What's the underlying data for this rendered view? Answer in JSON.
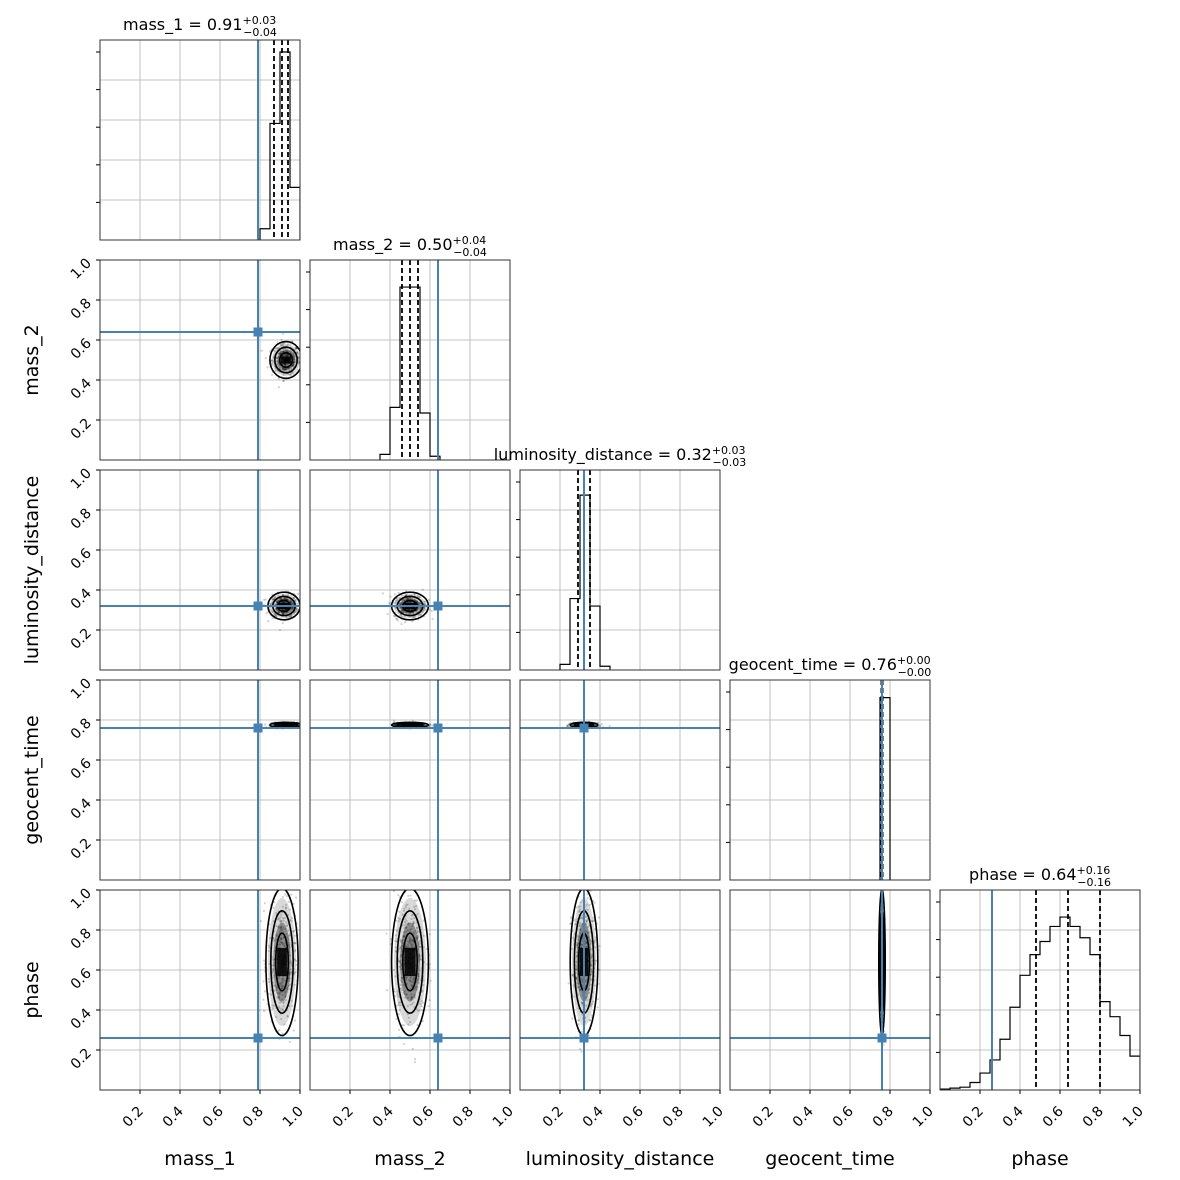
{
  "chart_data": {
    "type": "corner",
    "parameters": [
      "mass_1",
      "mass_2",
      "luminosity_distance",
      "geocent_time",
      "phase"
    ],
    "range": [
      0,
      1
    ],
    "ticks": [
      0.2,
      0.4,
      0.6,
      0.8,
      1.0
    ],
    "tick_labels": [
      "0.2",
      "0.4",
      "0.6",
      "0.8",
      "1.0"
    ],
    "grid": true,
    "truth_color": "#4682b4",
    "truths": {
      "mass_1": 0.79,
      "mass_2": 0.64,
      "luminosity_distance": 0.32,
      "geocent_time": 0.76,
      "phase": 0.26
    },
    "summaries": [
      {
        "param": "mass_1",
        "label": "mass_1 = 0.91",
        "median": 0.91,
        "plus": "+0.03",
        "minus": "−0.04",
        "quantiles": [
          0.87,
          0.91,
          0.94
        ]
      },
      {
        "param": "mass_2",
        "label": "mass_2 = 0.50",
        "median": 0.5,
        "plus": "+0.04",
        "minus": "−0.04",
        "quantiles": [
          0.46,
          0.5,
          0.54
        ]
      },
      {
        "param": "luminosity_distance",
        "label": "luminosity_distance = 0.32",
        "median": 0.32,
        "plus": "+0.03",
        "minus": "−0.03",
        "quantiles": [
          0.29,
          0.32,
          0.35
        ]
      },
      {
        "param": "geocent_time",
        "label": "geocent_time = 0.76",
        "median": 0.76,
        "plus": "+0.00",
        "minus": "−0.00",
        "quantiles": [
          0.757,
          0.76,
          0.763
        ]
      },
      {
        "param": "phase",
        "label": "phase = 0.64",
        "median": 0.64,
        "plus": "+0.16",
        "minus": "−0.16",
        "quantiles": [
          0.48,
          0.64,
          0.8
        ]
      }
    ],
    "histograms": {
      "mass_1": {
        "edges": [
          0.8,
          0.85,
          0.9,
          0.95,
          1.0
        ],
        "values": [
          0.06,
          0.62,
          1.0,
          0.28
        ]
      },
      "mass_2": {
        "edges": [
          0.35,
          0.4,
          0.45,
          0.5,
          0.55,
          0.6,
          0.65
        ],
        "values": [
          0.03,
          0.28,
          0.92,
          0.92,
          0.25,
          0.02
        ]
      },
      "luminosity_distance": {
        "edges": [
          0.2,
          0.25,
          0.3,
          0.35,
          0.4,
          0.45
        ],
        "values": [
          0.03,
          0.38,
          0.93,
          0.34,
          0.02
        ]
      },
      "geocent_time": {
        "edges": [
          0.75,
          0.8
        ],
        "values": [
          0.97
        ]
      },
      "phase": {
        "edges": [
          0.0,
          0.05,
          0.1,
          0.15,
          0.2,
          0.25,
          0.3,
          0.35,
          0.4,
          0.45,
          0.5,
          0.55,
          0.6,
          0.65,
          0.7,
          0.75,
          0.8,
          0.85,
          0.9,
          0.95,
          1.0
        ],
        "values": [
          0.005,
          0.01,
          0.015,
          0.04,
          0.09,
          0.16,
          0.27,
          0.44,
          0.61,
          0.72,
          0.79,
          0.87,
          0.92,
          0.87,
          0.81,
          0.72,
          0.47,
          0.39,
          0.29,
          0.18
        ]
      }
    },
    "posterior_2d": [
      {
        "x": "mass_1",
        "y": "mass_2",
        "center": [
          0.93,
          0.5
        ],
        "sigma": [
          0.035,
          0.04
        ]
      },
      {
        "x": "mass_1",
        "y": "luminosity_distance",
        "center": [
          0.92,
          0.32
        ],
        "sigma": [
          0.035,
          0.03
        ]
      },
      {
        "x": "mass_1",
        "y": "geocent_time",
        "center": [
          0.93,
          0.775
        ],
        "sigma": [
          0.035,
          0.006
        ]
      },
      {
        "x": "mass_1",
        "y": "phase",
        "center": [
          0.91,
          0.64
        ],
        "sigma": [
          0.035,
          0.16
        ]
      },
      {
        "x": "mass_2",
        "y": "luminosity_distance",
        "center": [
          0.5,
          0.32
        ],
        "sigma": [
          0.04,
          0.03
        ]
      },
      {
        "x": "mass_2",
        "y": "geocent_time",
        "center": [
          0.5,
          0.775
        ],
        "sigma": [
          0.04,
          0.006
        ]
      },
      {
        "x": "mass_2",
        "y": "phase",
        "center": [
          0.5,
          0.64
        ],
        "sigma": [
          0.04,
          0.16
        ]
      },
      {
        "x": "luminosity_distance",
        "y": "geocent_time",
        "center": [
          0.32,
          0.775
        ],
        "sigma": [
          0.03,
          0.006
        ]
      },
      {
        "x": "luminosity_distance",
        "y": "phase",
        "center": [
          0.32,
          0.64
        ],
        "sigma": [
          0.03,
          0.16
        ]
      },
      {
        "x": "geocent_time",
        "y": "phase",
        "center": [
          0.76,
          0.64
        ],
        "sigma": [
          0.006,
          0.16
        ]
      }
    ]
  }
}
